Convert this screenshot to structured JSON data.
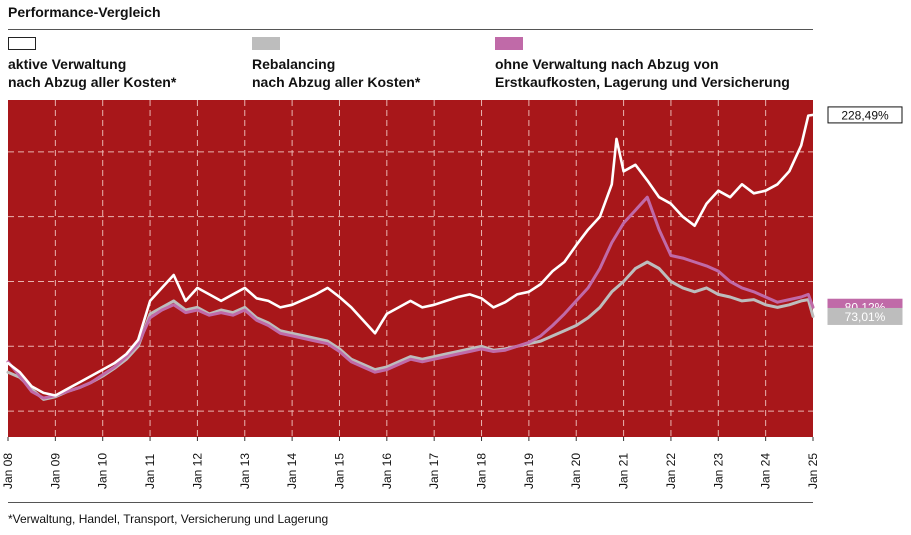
{
  "title": "Performance-Vergleich",
  "footnote": "*Verwaltung, Handel, Transport, Versicherung und Lagerung",
  "legend": [
    {
      "line1": "aktive Verwaltung",
      "line2": "nach Abzug aller Kosten*"
    },
    {
      "line1": "Rebalancing",
      "line2": "nach Abzug aller Kosten*"
    },
    {
      "line1": "ohne Verwaltung nach Abzug von",
      "line2": "Erstkaufkosten, Lagerung und Versicherung"
    }
  ],
  "colors": {
    "plot_background": "#a8171a",
    "grid": "#e8b4b0",
    "aktiv": "#ffffff",
    "rebalancing": "#bdbdbd",
    "ohne": "#c06aa8"
  },
  "chart_data": {
    "type": "line",
    "title": "Performance-Vergleich",
    "xlabel": "",
    "ylabel": "",
    "x_ticks": [
      "Jan 08",
      "Jan 09",
      "Jan 10",
      "Jan 11",
      "Jan 12",
      "Jan 13",
      "Jan 14",
      "Jan 15",
      "Jan 16",
      "Jan 17",
      "Jan 18",
      "Jan 19",
      "Jan 20",
      "Jan 21",
      "Jan 22",
      "Jan 23",
      "Jan 24",
      "Jan 25"
    ],
    "x_range": [
      2008.0,
      2025.0
    ],
    "ylim": [
      -20,
      240
    ],
    "grid": "dashed",
    "end_labels": [
      {
        "series": "aktiv",
        "text": "228,49%",
        "value": 228.49
      },
      {
        "series": "ohne",
        "text": "80,12%",
        "value": 80.12
      },
      {
        "series": "rebalancing",
        "text": "73,01%",
        "value": 73.01
      }
    ],
    "series": [
      {
        "key": "aktiv",
        "name": "aktive Verwaltung nach Abzug aller Kosten*",
        "x": [
          2008.0,
          2008.25,
          2008.5,
          2008.75,
          2009.0,
          2009.25,
          2009.5,
          2009.75,
          2010.0,
          2010.25,
          2010.5,
          2010.75,
          2011.0,
          2011.25,
          2011.5,
          2011.75,
          2012.0,
          2012.25,
          2012.5,
          2012.75,
          2013.0,
          2013.25,
          2013.5,
          2013.75,
          2014.0,
          2014.25,
          2014.5,
          2014.75,
          2015.0,
          2015.25,
          2015.5,
          2015.75,
          2016.0,
          2016.25,
          2016.5,
          2016.75,
          2017.0,
          2017.25,
          2017.5,
          2017.75,
          2018.0,
          2018.25,
          2018.5,
          2018.75,
          2019.0,
          2019.25,
          2019.5,
          2019.75,
          2020.0,
          2020.25,
          2020.5,
          2020.75,
          2020.85,
          2021.0,
          2021.25,
          2021.5,
          2021.75,
          2022.0,
          2022.25,
          2022.5,
          2022.75,
          2023.0,
          2023.25,
          2023.5,
          2023.75,
          2024.0,
          2024.25,
          2024.5,
          2024.75,
          2024.9,
          2025.0
        ],
        "values": [
          37,
          30,
          19,
          14,
          12,
          17,
          22,
          27,
          32,
          37,
          44,
          55,
          85,
          95,
          105,
          85,
          95,
          90,
          85,
          90,
          95,
          87,
          85,
          80,
          82,
          86,
          90,
          95,
          88,
          80,
          70,
          60,
          75,
          80,
          85,
          80,
          82,
          85,
          88,
          90,
          87,
          80,
          84,
          90,
          92,
          98,
          108,
          115,
          128,
          140,
          150,
          175,
          210,
          185,
          190,
          178,
          165,
          160,
          150,
          143,
          160,
          170,
          165,
          175,
          168,
          170,
          175,
          185,
          205,
          228,
          228.49
        ]
      },
      {
        "key": "rebalancing",
        "name": "Rebalancing nach Abzug aller Kosten*",
        "x": [
          2008.0,
          2008.25,
          2008.5,
          2008.75,
          2009.0,
          2009.25,
          2009.5,
          2009.75,
          2010.0,
          2010.25,
          2010.5,
          2010.75,
          2011.0,
          2011.25,
          2011.5,
          2011.75,
          2012.0,
          2012.25,
          2012.5,
          2012.75,
          2013.0,
          2013.25,
          2013.5,
          2013.75,
          2014.0,
          2014.25,
          2014.5,
          2014.75,
          2015.0,
          2015.25,
          2015.5,
          2015.75,
          2016.0,
          2016.25,
          2016.5,
          2016.75,
          2017.0,
          2017.25,
          2017.5,
          2017.75,
          2018.0,
          2018.25,
          2018.5,
          2018.75,
          2019.0,
          2019.25,
          2019.5,
          2019.75,
          2020.0,
          2020.25,
          2020.5,
          2020.75,
          2021.0,
          2021.25,
          2021.5,
          2021.75,
          2022.0,
          2022.25,
          2022.5,
          2022.75,
          2023.0,
          2023.25,
          2023.5,
          2023.75,
          2024.0,
          2024.25,
          2024.5,
          2024.75,
          2024.9,
          2025.0
        ],
        "values": [
          30,
          26,
          17,
          9,
          11,
          15,
          18,
          22,
          27,
          33,
          40,
          50,
          75,
          80,
          85,
          78,
          80,
          75,
          78,
          76,
          80,
          72,
          68,
          62,
          60,
          58,
          56,
          54,
          48,
          40,
          36,
          32,
          34,
          38,
          42,
          40,
          42,
          44,
          46,
          48,
          50,
          47,
          48,
          50,
          52,
          54,
          58,
          62,
          66,
          72,
          80,
          92,
          100,
          110,
          115,
          110,
          100,
          95,
          92,
          95,
          90,
          88,
          85,
          86,
          82,
          80,
          82,
          85,
          86,
          73.01
        ]
      },
      {
        "key": "ohne",
        "name": "ohne Verwaltung nach Abzug von Erstkaufkosten, Lagerung und Versicherung",
        "x": [
          2008.0,
          2008.25,
          2008.5,
          2008.75,
          2009.0,
          2009.25,
          2009.5,
          2009.75,
          2010.0,
          2010.25,
          2010.5,
          2010.75,
          2011.0,
          2011.25,
          2011.5,
          2011.75,
          2012.0,
          2012.25,
          2012.5,
          2012.75,
          2013.0,
          2013.25,
          2013.5,
          2013.75,
          2014.0,
          2014.25,
          2014.5,
          2014.75,
          2015.0,
          2015.25,
          2015.5,
          2015.75,
          2016.0,
          2016.25,
          2016.5,
          2016.75,
          2017.0,
          2017.25,
          2017.5,
          2017.75,
          2018.0,
          2018.25,
          2018.5,
          2018.75,
          2019.0,
          2019.25,
          2019.5,
          2019.75,
          2020.0,
          2020.25,
          2020.5,
          2020.75,
          2021.0,
          2021.25,
          2021.5,
          2021.75,
          2022.0,
          2022.25,
          2022.5,
          2022.75,
          2023.0,
          2023.25,
          2023.5,
          2023.75,
          2024.0,
          2024.25,
          2024.5,
          2024.75,
          2024.9,
          2025.0
        ],
        "values": [
          38,
          27,
          15,
          10,
          12,
          15,
          18,
          22,
          28,
          34,
          42,
          52,
          72,
          78,
          82,
          76,
          78,
          74,
          76,
          74,
          78,
          70,
          66,
          60,
          58,
          56,
          54,
          52,
          46,
          38,
          34,
          30,
          32,
          36,
          40,
          38,
          40,
          42,
          44,
          46,
          48,
          46,
          47,
          50,
          53,
          58,
          66,
          75,
          85,
          95,
          110,
          130,
          145,
          155,
          165,
          140,
          120,
          118,
          115,
          112,
          108,
          100,
          95,
          92,
          88,
          84,
          86,
          88,
          90,
          80.12
        ]
      }
    ]
  }
}
